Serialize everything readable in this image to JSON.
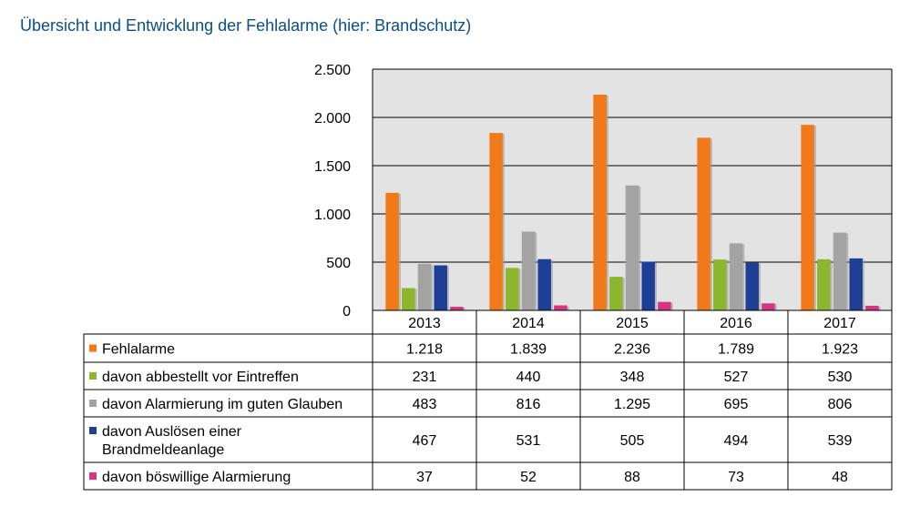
{
  "title": "Übersicht und Entwicklung der Fehlalarme (hier: Brandschutz)",
  "chart_data": {
    "type": "bar",
    "categories": [
      "2013",
      "2014",
      "2015",
      "2016",
      "2017"
    ],
    "ylim": [
      0,
      2500
    ],
    "yticks": [
      0,
      500,
      1000,
      1500,
      2000,
      2500
    ],
    "ytick_labels": [
      "0",
      "500",
      "1.000",
      "1.500",
      "2.000",
      "2.500"
    ],
    "grid": true,
    "legend": "data-table",
    "series": [
      {
        "name": "Fehlalarme",
        "color": "#f07a1a",
        "values": [
          1218,
          1839,
          2236,
          1789,
          1923
        ],
        "labels": [
          "1.218",
          "1.839",
          "2.236",
          "1.789",
          "1.923"
        ]
      },
      {
        "name": "davon abbestellt vor Eintreffen",
        "color": "#8bb62d",
        "values": [
          231,
          440,
          348,
          527,
          530
        ],
        "labels": [
          "231",
          "440",
          "348",
          "527",
          "530"
        ]
      },
      {
        "name": "davon Alarmierung im guten Glauben",
        "color": "#a3a3a3",
        "values": [
          483,
          816,
          1295,
          695,
          806
        ],
        "labels": [
          "483",
          "816",
          "1.295",
          "695",
          "806"
        ]
      },
      {
        "name_lines": [
          "davon Auslösen einer",
          "Brandmeldeanlage"
        ],
        "color": "#1f3f97",
        "values": [
          467,
          531,
          505,
          494,
          539
        ],
        "labels": [
          "467",
          "531",
          "505",
          "494",
          "539"
        ]
      },
      {
        "name": "davon böswillige Alarmierung",
        "color": "#d6357f",
        "values": [
          37,
          52,
          88,
          73,
          48
        ],
        "labels": [
          "37",
          "52",
          "88",
          "73",
          "48"
        ]
      }
    ]
  }
}
